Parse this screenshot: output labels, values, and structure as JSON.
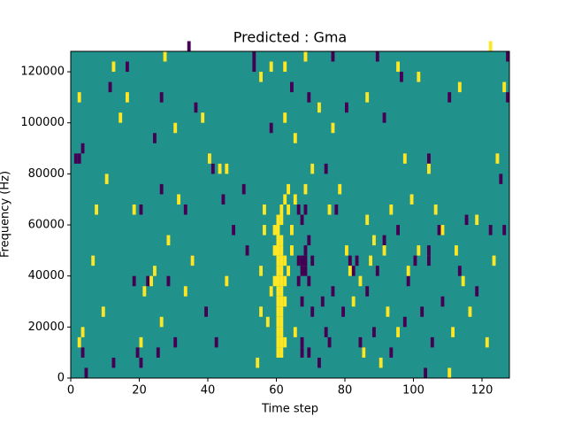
{
  "chart_data": {
    "type": "heatmap",
    "title": "Predicted : Gma",
    "x_label": "Time step",
    "y_label": "Frequency (Hz)",
    "xlim": [
      0,
      128
    ],
    "xticks": [
      0,
      20,
      40,
      60,
      80,
      100,
      120
    ],
    "ylim": [
      0,
      128000
    ],
    "yticks": [
      0,
      20000,
      40000,
      60000,
      80000,
      100000,
      120000
    ],
    "background": 0,
    "colors": {
      "-1": "#440154",
      "0": "#21918c",
      "1": "#fde725"
    },
    "cells": [
      [
        60,
        8000,
        1
      ],
      [
        60,
        12000,
        1
      ],
      [
        60,
        16000,
        1
      ],
      [
        60,
        20000,
        1
      ],
      [
        60,
        24000,
        1
      ],
      [
        60,
        28000,
        1
      ],
      [
        60,
        32000,
        1
      ],
      [
        60,
        36000,
        1
      ],
      [
        60,
        40000,
        1
      ],
      [
        60,
        44000,
        1
      ],
      [
        60,
        48000,
        1
      ],
      [
        60,
        52000,
        1
      ],
      [
        60,
        56000,
        1
      ],
      [
        60,
        60000,
        1
      ],
      [
        61,
        8000,
        1
      ],
      [
        61,
        12000,
        1
      ],
      [
        61,
        16000,
        1
      ],
      [
        61,
        20000,
        1
      ],
      [
        61,
        24000,
        1
      ],
      [
        61,
        28000,
        1
      ],
      [
        61,
        32000,
        1
      ],
      [
        61,
        36000,
        1
      ],
      [
        61,
        40000,
        1
      ],
      [
        61,
        44000,
        1
      ],
      [
        61,
        48000,
        1
      ],
      [
        61,
        52000,
        1
      ],
      [
        61,
        60000,
        1
      ],
      [
        61,
        64000,
        1
      ],
      [
        62,
        12000,
        1
      ],
      [
        62,
        28000,
        1
      ],
      [
        62,
        36000,
        1
      ],
      [
        62,
        44000,
        1
      ],
      [
        62,
        68000,
        1
      ],
      [
        63,
        40000,
        1
      ],
      [
        63,
        64000,
        1
      ],
      [
        63,
        72000,
        1
      ],
      [
        64,
        48000,
        1
      ],
      [
        64,
        56000,
        1
      ],
      [
        65,
        68000,
        1
      ],
      [
        65,
        16000,
        1
      ],
      [
        59,
        36000,
        1
      ],
      [
        59,
        48000,
        1
      ],
      [
        59,
        56000,
        1
      ],
      [
        58,
        32000,
        1
      ],
      [
        57,
        20000,
        1
      ],
      [
        55,
        40000,
        1
      ],
      [
        55,
        24000,
        1
      ],
      [
        54,
        4000,
        1
      ],
      [
        56,
        64000,
        1
      ],
      [
        56,
        56000,
        1
      ],
      [
        66,
        44000,
        -1
      ],
      [
        66,
        36000,
        -1
      ],
      [
        66,
        64000,
        -1
      ],
      [
        67,
        8000,
        -1
      ],
      [
        67,
        12000,
        -1
      ],
      [
        67,
        28000,
        -1
      ],
      [
        67,
        40000,
        -1
      ],
      [
        67,
        44000,
        -1
      ],
      [
        67,
        60000,
        -1
      ],
      [
        68,
        40000,
        -1
      ],
      [
        68,
        44000,
        -1
      ],
      [
        68,
        48000,
        -1
      ],
      [
        68,
        64000,
        -1
      ],
      [
        69,
        36000,
        -1
      ],
      [
        69,
        8000,
        -1
      ],
      [
        69,
        52000,
        -1
      ],
      [
        70,
        44000,
        -1
      ],
      [
        70,
        24000,
        -1
      ],
      [
        72,
        4000,
        -1
      ],
      [
        73,
        28000,
        -1
      ],
      [
        74,
        16000,
        -1
      ],
      [
        75,
        12000,
        -1
      ],
      [
        76,
        32000,
        -1
      ],
      [
        77,
        64000,
        -1
      ],
      [
        79,
        24000,
        -1
      ],
      [
        81,
        44000,
        -1
      ],
      [
        82,
        40000,
        -1
      ],
      [
        83,
        44000,
        -1
      ],
      [
        84,
        12000,
        -1
      ],
      [
        85,
        8000,
        -1
      ],
      [
        86,
        32000,
        -1
      ],
      [
        88,
        16000,
        -1
      ],
      [
        89,
        40000,
        -1
      ],
      [
        91,
        52000,
        -1
      ],
      [
        93,
        8000,
        -1
      ],
      [
        95,
        56000,
        -1
      ],
      [
        97,
        20000,
        -1
      ],
      [
        98,
        36000,
        -1
      ],
      [
        100,
        44000,
        -1
      ],
      [
        102,
        24000,
        -1
      ],
      [
        103,
        0,
        -1
      ],
      [
        104,
        48000,
        -1
      ],
      [
        104,
        44000,
        -1
      ],
      [
        105,
        12000,
        -1
      ],
      [
        107,
        56000,
        -1
      ],
      [
        108,
        28000,
        -1
      ],
      [
        113,
        40000,
        -1
      ],
      [
        115,
        60000,
        -1
      ],
      [
        118,
        32000,
        -1
      ],
      [
        122,
        56000,
        -1
      ],
      [
        126,
        56000,
        -1
      ],
      [
        4,
        0,
        -1
      ],
      [
        3,
        8000,
        -1
      ],
      [
        1,
        84000,
        -1
      ],
      [
        2,
        84000,
        -1
      ],
      [
        3,
        88000,
        -1
      ],
      [
        12,
        4000,
        -1
      ],
      [
        18,
        36000,
        -1
      ],
      [
        19,
        8000,
        -1
      ],
      [
        20,
        4000,
        -1
      ],
      [
        22,
        36000,
        -1
      ],
      [
        25,
        8000,
        -1
      ],
      [
        26,
        72000,
        -1
      ],
      [
        24,
        92000,
        -1
      ],
      [
        28,
        36000,
        -1
      ],
      [
        30,
        12000,
        -1
      ],
      [
        33,
        64000,
        -1
      ],
      [
        35,
        44000,
        -1
      ],
      [
        36,
        104000,
        -1
      ],
      [
        41,
        80000,
        -1
      ],
      [
        44,
        68000,
        -1
      ],
      [
        47,
        56000,
        -1
      ],
      [
        50,
        72000,
        -1
      ],
      [
        51,
        48000,
        -1
      ],
      [
        53,
        124000,
        -1
      ],
      [
        58,
        96000,
        -1
      ],
      [
        64,
        112000,
        -1
      ],
      [
        69,
        108000,
        -1
      ],
      [
        74,
        80000,
        -1
      ],
      [
        76,
        124000,
        -1
      ],
      [
        80,
        104000,
        -1
      ],
      [
        89,
        124000,
        -1
      ],
      [
        91,
        100000,
        -1
      ],
      [
        96,
        116000,
        -1
      ],
      [
        104,
        84000,
        -1
      ],
      [
        110,
        108000,
        -1
      ],
      [
        125,
        76000,
        -1
      ],
      [
        127,
        108000,
        -1
      ],
      [
        127,
        124000,
        -1
      ],
      [
        53,
        120000,
        -1
      ],
      [
        42,
        12000,
        -1
      ],
      [
        16,
        120000,
        -1
      ],
      [
        11,
        112000,
        -1
      ],
      [
        26,
        108000,
        -1
      ],
      [
        34,
        128000,
        -1
      ],
      [
        20,
        64000,
        -1
      ],
      [
        39,
        24000,
        -1
      ],
      [
        2,
        12000,
        1
      ],
      [
        3,
        16000,
        1
      ],
      [
        2,
        108000,
        1
      ],
      [
        7,
        64000,
        1
      ],
      [
        9,
        24000,
        1
      ],
      [
        10,
        76000,
        1
      ],
      [
        14,
        100000,
        1
      ],
      [
        12,
        120000,
        1
      ],
      [
        16,
        108000,
        1
      ],
      [
        18,
        64000,
        1
      ],
      [
        20,
        12000,
        1
      ],
      [
        21,
        32000,
        1
      ],
      [
        24,
        40000,
        1
      ],
      [
        26,
        20000,
        1
      ],
      [
        28,
        52000,
        1
      ],
      [
        30,
        96000,
        1
      ],
      [
        31,
        68000,
        1
      ],
      [
        33,
        32000,
        1
      ],
      [
        35,
        44000,
        1
      ],
      [
        38,
        100000,
        1
      ],
      [
        40,
        84000,
        1
      ],
      [
        43,
        80000,
        1
      ],
      [
        45,
        36000,
        1
      ],
      [
        55,
        116000,
        1
      ],
      [
        58,
        120000,
        1
      ],
      [
        62,
        100000,
        1
      ],
      [
        65,
        92000,
        1
      ],
      [
        68,
        72000,
        1
      ],
      [
        70,
        80000,
        1
      ],
      [
        72,
        104000,
        1
      ],
      [
        75,
        64000,
        1
      ],
      [
        76,
        96000,
        1
      ],
      [
        78,
        72000,
        1
      ],
      [
        80,
        48000,
        1
      ],
      [
        81,
        40000,
        1
      ],
      [
        82,
        28000,
        1
      ],
      [
        84,
        36000,
        1
      ],
      [
        85,
        8000,
        1
      ],
      [
        86,
        60000,
        1
      ],
      [
        87,
        44000,
        1
      ],
      [
        88,
        52000,
        1
      ],
      [
        90,
        4000,
        1
      ],
      [
        91,
        48000,
        1
      ],
      [
        92,
        24000,
        1
      ],
      [
        93,
        64000,
        1
      ],
      [
        95,
        16000,
        1
      ],
      [
        97,
        84000,
        1
      ],
      [
        98,
        40000,
        1
      ],
      [
        99,
        68000,
        1
      ],
      [
        101,
        48000,
        1
      ],
      [
        104,
        80000,
        1
      ],
      [
        106,
        64000,
        1
      ],
      [
        108,
        56000,
        1
      ],
      [
        110,
        0,
        1
      ],
      [
        111,
        16000,
        1
      ],
      [
        112,
        48000,
        1
      ],
      [
        114,
        36000,
        1
      ],
      [
        116,
        24000,
        1
      ],
      [
        118,
        60000,
        1
      ],
      [
        121,
        12000,
        1
      ],
      [
        123,
        44000,
        1
      ],
      [
        124,
        84000,
        1
      ],
      [
        126,
        112000,
        1
      ],
      [
        122,
        128000,
        1
      ],
      [
        113,
        112000,
        1
      ],
      [
        95,
        120000,
        1
      ],
      [
        101,
        116000,
        1
      ],
      [
        86,
        108000,
        1
      ],
      [
        68,
        124000,
        1
      ],
      [
        62,
        120000,
        1
      ],
      [
        45,
        80000,
        1
      ],
      [
        23,
        36000,
        1
      ],
      [
        6,
        44000,
        1
      ],
      [
        27,
        124000,
        1
      ]
    ]
  }
}
